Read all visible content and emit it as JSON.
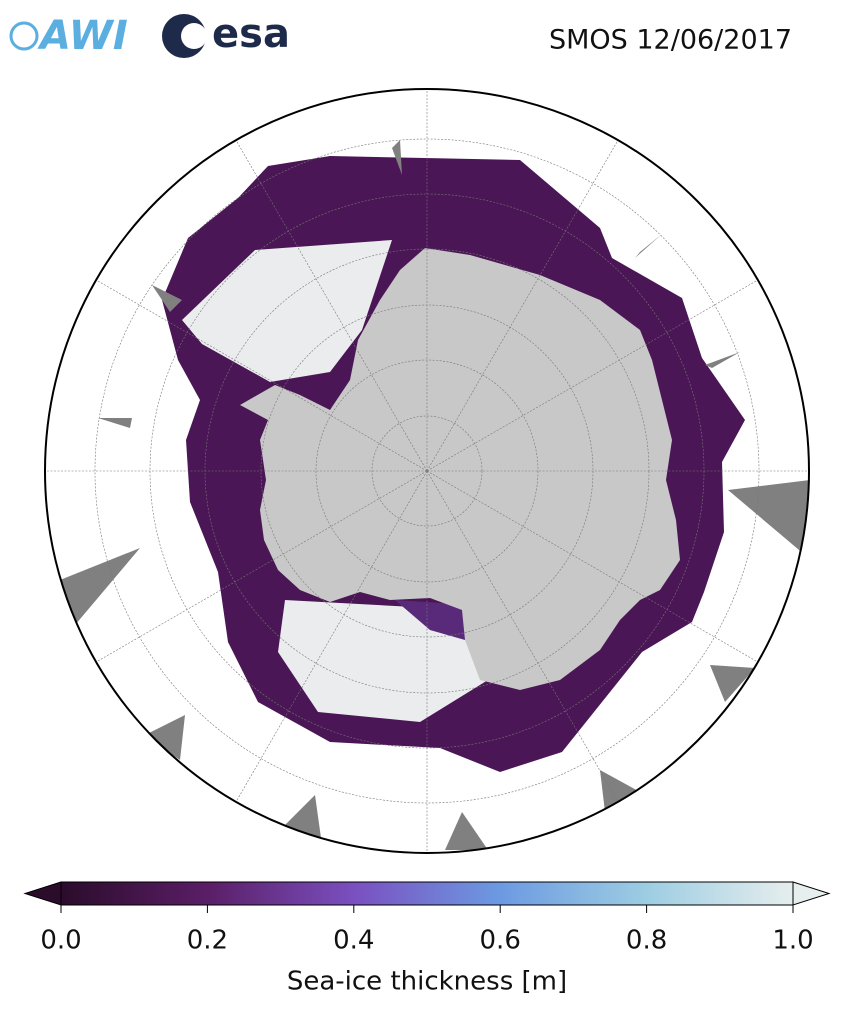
{
  "header": {
    "logos": [
      "AWI",
      "esa"
    ],
    "title": "SMOS 12/06/2017"
  },
  "colorbar": {
    "range": [
      0,
      1
    ],
    "ticks": [
      {
        "value": 0,
        "label": "0.0"
      },
      0.2,
      0.4,
      0.6,
      0.8,
      {
        "value": 1,
        "label": "1.0"
      }
    ],
    "label": "Sea-ice thickness [m]"
  }
}
